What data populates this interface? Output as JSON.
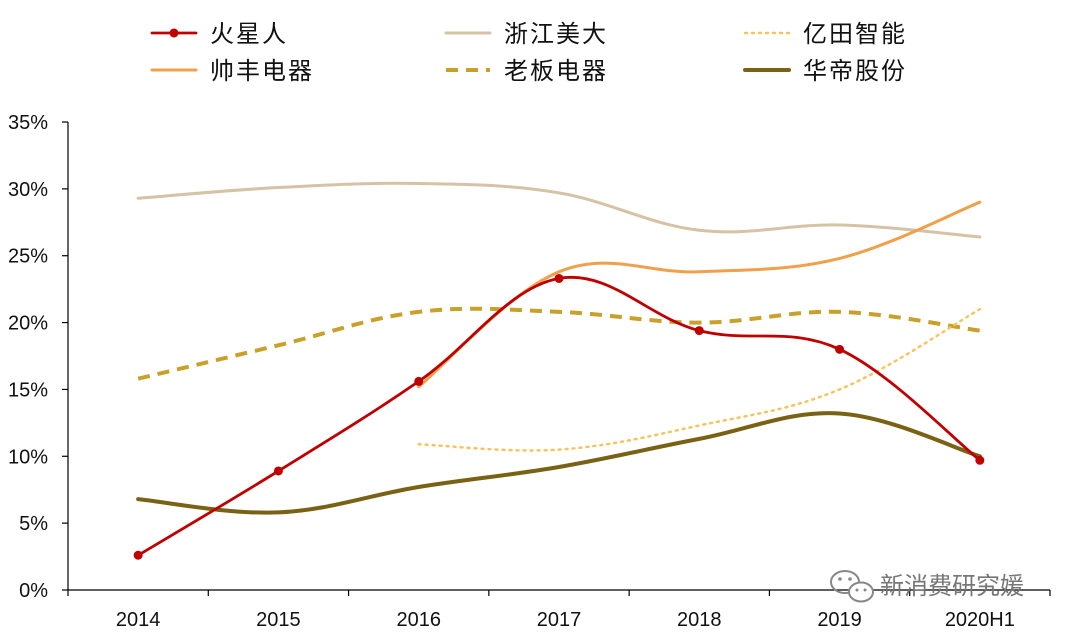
{
  "chart_data": {
    "type": "line",
    "categories": [
      "2014",
      "2015",
      "2016",
      "2017",
      "2018",
      "2019",
      "2020H1"
    ],
    "ylim": [
      0,
      35
    ],
    "y_ticks": [
      "0%",
      "5%",
      "10%",
      "15%",
      "20%",
      "25%",
      "30%",
      "35%"
    ],
    "legend_position": "top",
    "series": [
      {
        "name": "火星人",
        "color": "#c00000",
        "style": "solid-markers",
        "values": [
          2.6,
          8.9,
          15.6,
          23.3,
          19.4,
          18.0,
          9.7
        ]
      },
      {
        "name": "浙江美大",
        "color": "#d6c3a5",
        "style": "solid",
        "values": [
          29.3,
          30.1,
          30.4,
          29.7,
          26.9,
          27.3,
          26.4
        ]
      },
      {
        "name": "亿田智能",
        "color": "#f4c55c",
        "style": "dotted",
        "values": [
          null,
          null,
          10.9,
          10.5,
          12.3,
          15.0,
          21.0
        ]
      },
      {
        "name": "帅丰电器",
        "color": "#f0a04b",
        "style": "solid",
        "values": [
          null,
          null,
          15.2,
          23.8,
          23.8,
          24.8,
          29.0
        ]
      },
      {
        "name": "老板电器",
        "color": "#c8a02a",
        "style": "dashed",
        "values": [
          15.8,
          18.3,
          20.8,
          20.8,
          20.0,
          20.8,
          19.4
        ]
      },
      {
        "name": "华帝股份",
        "color": "#7a6214",
        "style": "thick",
        "values": [
          6.8,
          5.8,
          7.7,
          9.2,
          11.3,
          13.2,
          10.0
        ]
      }
    ]
  },
  "watermark": {
    "text": "新消费研究媛",
    "icon": "wechat-icon"
  }
}
